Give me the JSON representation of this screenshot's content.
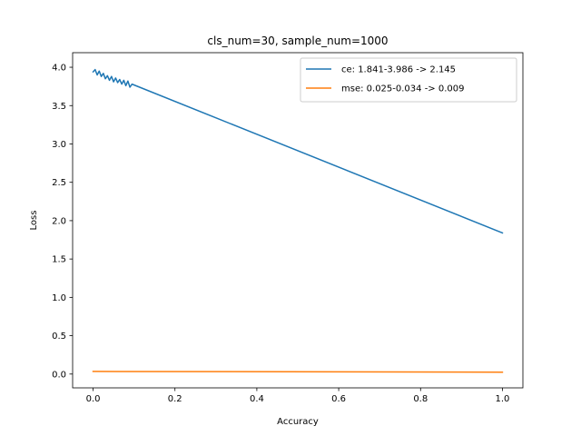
{
  "chart_data": {
    "type": "line",
    "title": "cls_num=30, sample_num=1000",
    "xlabel": "Accuracy",
    "ylabel": "Loss",
    "xlim": [
      -0.05,
      1.05
    ],
    "ylim": [
      -0.18,
      4.19
    ],
    "xticks": [
      0.0,
      0.2,
      0.4,
      0.6,
      0.8,
      1.0
    ],
    "xtick_labels": [
      "0.0",
      "0.2",
      "0.4",
      "0.6",
      "0.8",
      "1.0"
    ],
    "yticks": [
      0.0,
      0.5,
      1.0,
      1.5,
      2.0,
      2.5,
      3.0,
      3.5,
      4.0
    ],
    "ytick_labels": [
      "0.0",
      "0.5",
      "1.0",
      "1.5",
      "2.0",
      "2.5",
      "3.0",
      "3.5",
      "4.0"
    ],
    "grid": false,
    "legend_position": "top-right",
    "series": [
      {
        "name": "ce: 1.841-3.986 -> 2.145",
        "color": "#1f77b4",
        "x": [
          0.0,
          0.005,
          0.01,
          0.015,
          0.02,
          0.025,
          0.03,
          0.035,
          0.04,
          0.045,
          0.05,
          0.055,
          0.06,
          0.065,
          0.07,
          0.075,
          0.08,
          0.085,
          0.09,
          0.095,
          1.0
        ],
        "y": [
          3.94,
          3.97,
          3.9,
          3.95,
          3.88,
          3.92,
          3.85,
          3.89,
          3.83,
          3.88,
          3.81,
          3.86,
          3.8,
          3.84,
          3.78,
          3.83,
          3.76,
          3.82,
          3.74,
          3.78,
          1.84
        ]
      },
      {
        "name": "mse: 0.025-0.034 -> 0.009",
        "color": "#ff7f0e",
        "x": [
          0.0,
          1.0
        ],
        "y": [
          0.034,
          0.025
        ]
      }
    ]
  }
}
